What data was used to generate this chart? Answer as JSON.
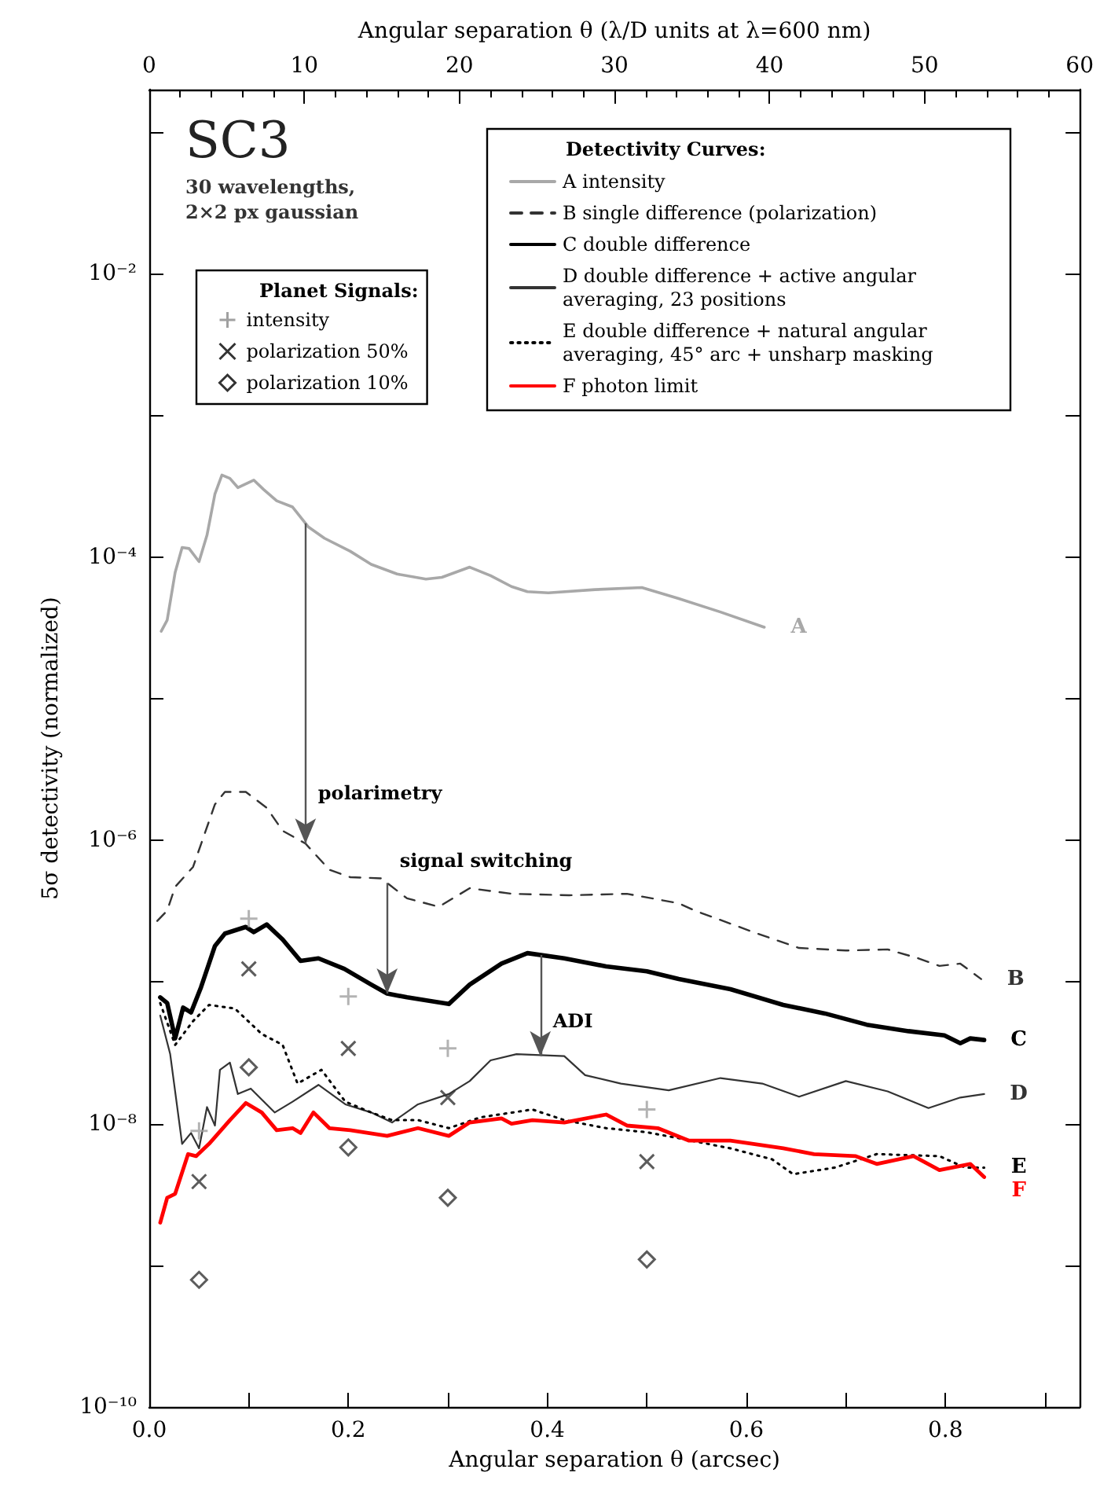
{
  "chart_data": {
    "type": "line",
    "title": "SC3",
    "subtitle": "30 wavelengths,\n2×2 px gaussian",
    "xlabel": "Angular separation θ (arcsec)",
    "ylabel": "5σ detectivity (normalized)",
    "x2label": "Angular separation θ (λ/D units at λ=600 nm)",
    "legend_title": "Detectivity Curves:",
    "legend": "top right",
    "grid": false,
    "log": "y",
    "xlim": [
      0,
      0.935
    ],
    "xticks": [
      {
        "value": 0,
        "label": "0.0"
      },
      {
        "value": 0.1,
        "label": null
      },
      0.2,
      {
        "value": 0.3,
        "label": null
      },
      0.4,
      {
        "value": 0.5,
        "label": null
      },
      0.6,
      {
        "value": 0.7,
        "label": null
      },
      0.8,
      {
        "value": 0.9,
        "label": null
      }
    ],
    "x2lim": [
      0,
      60
    ],
    "x2ticks": [
      0,
      10,
      20,
      30,
      40,
      50,
      60
    ],
    "ylim": [
      1e-10,
      0.2
    ],
    "yticks": [
      {
        "value": 1e-10,
        "label": "10⁻¹⁰"
      },
      {
        "value": 1e-09,
        "label": null
      },
      {
        "value": 1e-08,
        "label": "10⁻⁸"
      },
      {
        "value": 1e-07,
        "label": null
      },
      {
        "value": 1e-06,
        "label": "10⁻⁶"
      },
      {
        "value": 1e-05,
        "label": null
      },
      {
        "value": 0.0001,
        "label": "10⁻⁴"
      },
      {
        "value": 0.001,
        "label": null
      },
      {
        "value": 0.01,
        "label": "10⁻²"
      },
      {
        "value": 0.1,
        "label": null
      }
    ],
    "series": [
      {
        "name": "A intensity",
        "type": "line",
        "line_style": "solid",
        "color": "#a8a8a8",
        "x": [
          0.012,
          0.018,
          0.026,
          0.033,
          0.04,
          0.05,
          0.058,
          0.066,
          0.073,
          0.081,
          0.089,
          0.105,
          0.115,
          0.128,
          0.144,
          0.16,
          0.176,
          0.202,
          0.223,
          0.249,
          0.278,
          0.294,
          0.322,
          0.343,
          0.364,
          0.38,
          0.401,
          0.448,
          0.495,
          0.532,
          0.574,
          0.618
        ],
        "values": [
          3e-05,
          3.6e-05,
          7.8e-05,
          0.000117,
          0.000115,
          9.3e-05,
          0.000143,
          0.00028,
          0.00038,
          0.00036,
          0.00031,
          0.00035,
          0.0003,
          0.00025,
          0.000226,
          0.000163,
          0.000136,
          0.00011,
          8.9e-05,
          7.6e-05,
          7e-05,
          7.2e-05,
          8.5e-05,
          7.4e-05,
          6.2e-05,
          5.7e-05,
          5.6e-05,
          5.9e-05,
          6.1e-05,
          5.1e-05,
          4.1e-05,
          3.2e-05
        ]
      },
      {
        "name": "B single difference (polarization)",
        "type": "line",
        "line_style": "dashed",
        "color": "#333333",
        "x": [
          0.008,
          0.018,
          0.026,
          0.044,
          0.066,
          0.076,
          0.097,
          0.118,
          0.134,
          0.157,
          0.181,
          0.202,
          0.233,
          0.259,
          0.291,
          0.322,
          0.364,
          0.422,
          0.48,
          0.532,
          0.548,
          0.611,
          0.653,
          0.7,
          0.742,
          0.773,
          0.794,
          0.815,
          0.836
        ],
        "values": [
          2.7e-07,
          3.2e-07,
          4.7e-07,
          6.5e-07,
          1.8e-06,
          2.2e-06,
          2.2e-06,
          1.7e-06,
          1.17e-06,
          9.5e-07,
          6.2e-07,
          5.5e-07,
          5.4e-07,
          3.9e-07,
          3.4e-07,
          4.6e-07,
          4.2e-07,
          4.1e-07,
          4.2e-07,
          3.6e-07,
          3.2e-07,
          2.2e-07,
          1.74e-07,
          1.67e-07,
          1.7e-07,
          1.47e-07,
          1.3e-07,
          1.35e-07,
          1.05e-07
        ]
      },
      {
        "name": "C double difference",
        "type": "line",
        "line_style": "solid",
        "color": "#000000",
        "x": [
          0.011,
          0.018,
          0.026,
          0.034,
          0.042,
          0.052,
          0.066,
          0.076,
          0.097,
          0.105,
          0.118,
          0.134,
          0.152,
          0.17,
          0.196,
          0.223,
          0.239,
          0.259,
          0.301,
          0.322,
          0.354,
          0.38,
          0.417,
          0.459,
          0.5,
          0.532,
          0.584,
          0.637,
          0.679,
          0.721,
          0.763,
          0.799,
          0.815,
          0.825,
          0.839
        ],
        "values": [
          7.8e-08,
          7.1e-08,
          4e-08,
          6.6e-08,
          6.1e-08,
          9.2e-08,
          1.8e-07,
          2.2e-07,
          2.45e-07,
          2.25e-07,
          2.55e-07,
          2e-07,
          1.41e-07,
          1.47e-07,
          1.24e-07,
          9.6e-08,
          8.3e-08,
          7.8e-08,
          7e-08,
          9.6e-08,
          1.35e-07,
          1.6e-07,
          1.47e-07,
          1.29e-07,
          1.19e-07,
          1.05e-07,
          8.9e-08,
          6.9e-08,
          6e-08,
          5e-08,
          4.5e-08,
          4.2e-08,
          3.7e-08,
          4e-08,
          3.9e-08
        ]
      },
      {
        "name": "D double difference + active angular averaging, 23 positions",
        "type": "line",
        "line_style": "solid",
        "color": "#333333",
        "x": [
          0.011,
          0.021,
          0.033,
          0.042,
          0.05,
          0.058,
          0.066,
          0.071,
          0.081,
          0.089,
          0.102,
          0.126,
          0.144,
          0.17,
          0.197,
          0.223,
          0.244,
          0.27,
          0.301,
          0.322,
          0.343,
          0.369,
          0.417,
          0.438,
          0.474,
          0.522,
          0.574,
          0.616,
          0.653,
          0.7,
          0.742,
          0.783,
          0.815,
          0.839
        ],
        "values": [
          5.8e-08,
          3.1e-08,
          7.2e-09,
          8.6e-09,
          6.7e-09,
          1.31e-08,
          9.7e-09,
          2.4e-08,
          2.7e-08,
          1.62e-08,
          1.77e-08,
          1.2e-08,
          1.43e-08,
          1.88e-08,
          1.37e-08,
          1.2e-08,
          1.02e-08,
          1.37e-08,
          1.62e-08,
          2e-08,
          2.8e-08,
          3.1e-08,
          3e-08,
          2.2e-08,
          1.92e-08,
          1.72e-08,
          2.1e-08,
          1.92e-08,
          1.55e-08,
          2e-08,
          1.69e-08,
          1.29e-08,
          1.53e-08,
          1.62e-08
        ]
      },
      {
        "name": "E double difference + natural angular averaging, 45° arc + unsharp masking",
        "type": "line",
        "line_style": "dotted",
        "color": "#000000",
        "x": [
          0.011,
          0.026,
          0.044,
          0.06,
          0.086,
          0.113,
          0.134,
          0.149,
          0.173,
          0.197,
          0.223,
          0.244,
          0.27,
          0.301,
          0.333,
          0.385,
          0.417,
          0.459,
          0.5,
          0.532,
          0.584,
          0.626,
          0.647,
          0.689,
          0.731,
          0.794,
          0.82,
          0.839
        ],
        "values": [
          7.1e-08,
          3.6e-08,
          5.3e-08,
          6.9e-08,
          6.5e-08,
          4.3e-08,
          3.6e-08,
          1.92e-08,
          2.4e-08,
          1.43e-08,
          1.2e-08,
          1.06e-08,
          1.06e-08,
          9.3e-09,
          1.11e-08,
          1.26e-08,
          1.06e-08,
          9.3e-09,
          8.7e-09,
          7.9e-09,
          6.7e-09,
          5.6e-09,
          4.4e-09,
          4.9e-09,
          6.1e-09,
          5.9e-09,
          4.9e-09,
          4.9e-09
        ]
      },
      {
        "name": "F photon limit",
        "type": "line",
        "line_style": "solid",
        "color": "#ff0000",
        "x": [
          0.011,
          0.018,
          0.026,
          0.039,
          0.047,
          0.06,
          0.081,
          0.097,
          0.113,
          0.128,
          0.144,
          0.152,
          0.165,
          0.181,
          0.202,
          0.239,
          0.27,
          0.301,
          0.322,
          0.354,
          0.364,
          0.385,
          0.417,
          0.459,
          0.48,
          0.511,
          0.542,
          0.584,
          0.637,
          0.668,
          0.71,
          0.731,
          0.768,
          0.794,
          0.825,
          0.839
        ],
        "values": [
          2e-09,
          3e-09,
          3.2e-09,
          6.1e-09,
          5.9e-09,
          7.2e-09,
          1.06e-08,
          1.4e-08,
          1.2e-08,
          9e-09,
          9.3e-09,
          8.6e-09,
          1.2e-08,
          9.3e-09,
          9e-09,
          8.2e-09,
          9.3e-09,
          8.2e-09,
          1.02e-08,
          1.09e-08,
          1e-08,
          1.06e-08,
          1.02e-08,
          1.16e-08,
          9.7e-09,
          9.3e-09,
          7.6e-09,
          7.6e-09,
          6.7e-09,
          6.1e-09,
          5.9e-09,
          5.2e-09,
          5.9e-09,
          4.7e-09,
          5.2e-09,
          4.2e-09
        ]
      },
      {
        "name": "intensity",
        "type": "scatter",
        "marker": "cross",
        "color": "#a0a0a0",
        "x": [
          0.05,
          0.1,
          0.2,
          0.3,
          0.5
        ],
        "values": [
          8.9e-09,
          2.8e-07,
          7.9e-08,
          3.4e-08,
          1.26e-08
        ]
      },
      {
        "name": "polarization 50%",
        "type": "scatter",
        "marker": "cross",
        "color": "#333333",
        "x": [
          0.05,
          0.1,
          0.2,
          0.3,
          0.5
        ],
        "values": [
          3.9e-09,
          1.24e-07,
          3.4e-08,
          1.53e-08,
          5.4e-09
        ]
      },
      {
        "name": "polarization 10%",
        "type": "scatter",
        "marker": "diamond",
        "color": "#333333",
        "x": [
          0.05,
          0.1,
          0.2,
          0.3,
          0.5
        ],
        "values": [
          7.9e-10,
          2.5e-08,
          6.8e-09,
          3e-09,
          1.1e-09
        ]
      }
    ],
    "annotations": [
      "Planet Signals:",
      {
        "text": "polarimetry",
        "x": 0.157,
        "y": 9.5e-07
      },
      {
        "text": "signal switching",
        "x": 0.239,
        "y": 8.3e-08
      },
      {
        "text": "ADI",
        "x": 0.393,
        "y": 3e-08
      },
      {
        "text": "A",
        "x": 0.618,
        "y": 3.2e-05
      },
      {
        "text": "B",
        "x": 0.836,
        "y": 1.05e-07
      },
      {
        "text": "C",
        "x": 0.839,
        "y": 3.9e-08
      },
      {
        "text": "D",
        "x": 0.839,
        "y": 1.62e-08
      },
      {
        "text": "E",
        "x": 0.839,
        "y": 4.9e-09
      },
      {
        "text": "F",
        "x": 0.839,
        "y": 4.2e-09
      }
    ]
  }
}
